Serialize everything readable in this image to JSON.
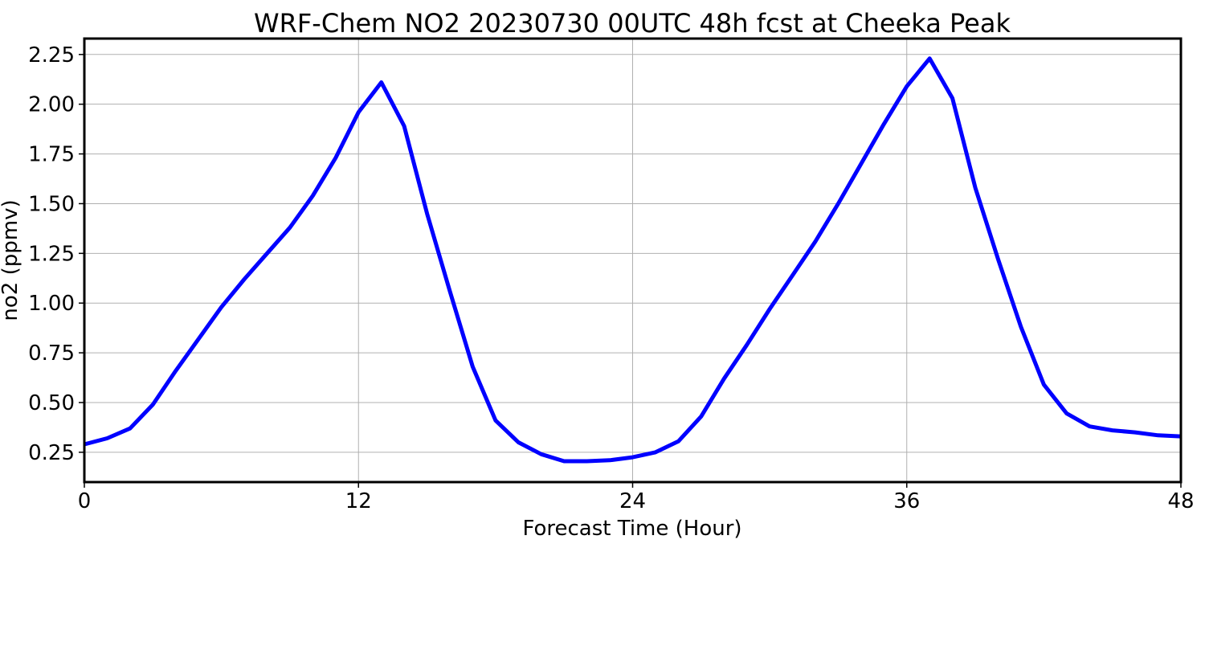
{
  "chart_data": {
    "type": "line",
    "title": "WRF-Chem NO2  20230730 00UTC 48h fcst at Cheeka Peak",
    "xlabel": "Forecast Time (Hour)",
    "ylabel": "no2  (ppmv)",
    "xlim": [
      0,
      48
    ],
    "ylim": [
      0.1,
      2.33
    ],
    "xticks": [
      0,
      12,
      24,
      36,
      48
    ],
    "xtick_labels": [
      "0",
      "12",
      "24",
      "36",
      "48"
    ],
    "yticks": [
      0.25,
      0.5,
      0.75,
      1.0,
      1.25,
      1.5,
      1.75,
      2.0,
      2.25
    ],
    "ytick_labels": [
      "0.25",
      "0.50",
      "0.75",
      "1.00",
      "1.25",
      "1.50",
      "1.75",
      "2.00",
      "2.25"
    ],
    "grid": true,
    "series": [
      {
        "color": "#0000ff",
        "x": [
          0,
          1,
          2,
          3,
          4,
          5,
          6,
          7,
          8,
          9,
          10,
          11,
          12,
          13,
          14,
          15,
          16,
          17,
          18,
          19,
          20,
          21,
          22,
          23,
          24,
          25,
          26,
          27,
          28,
          29,
          30,
          31,
          32,
          33,
          34,
          35,
          36,
          37,
          38,
          39,
          40,
          41,
          42,
          43,
          44,
          45,
          46,
          47,
          48
        ],
        "values": [
          0.29,
          0.32,
          0.37,
          0.49,
          0.66,
          0.82,
          0.98,
          1.12,
          1.25,
          1.38,
          1.54,
          1.73,
          1.96,
          2.11,
          1.89,
          1.45,
          1.06,
          0.68,
          0.41,
          0.3,
          0.24,
          0.205,
          0.205,
          0.21,
          0.225,
          0.25,
          0.305,
          0.43,
          0.62,
          0.79,
          0.97,
          1.14,
          1.31,
          1.5,
          1.7,
          1.9,
          2.09,
          2.23,
          2.03,
          1.58,
          1.22,
          0.88,
          0.59,
          0.445,
          0.38,
          0.36,
          0.35,
          0.335,
          0.33
        ]
      }
    ]
  }
}
